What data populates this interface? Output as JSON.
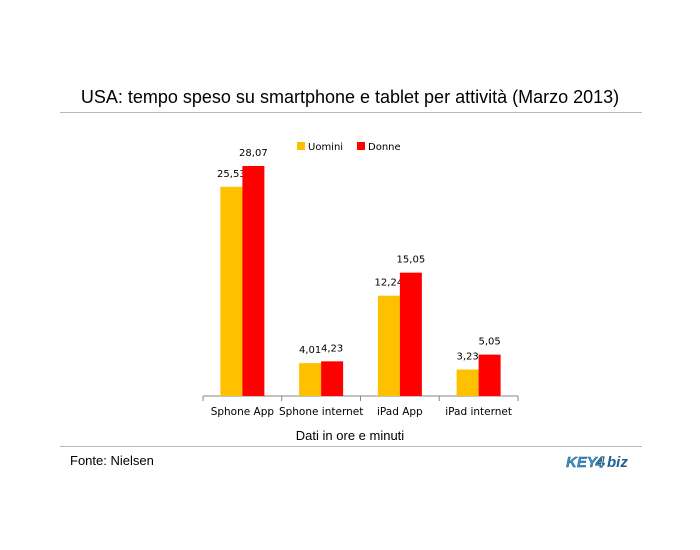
{
  "chart_data": {
    "type": "bar",
    "title": "USA: tempo speso su smartphone e tablet per attività (Marzo 2013)",
    "xlabel": "Dati in ore e minuti",
    "ylabel": "",
    "ylim": [
      0,
      28.07
    ],
    "categories": [
      "Sphone App",
      "Sphone internet",
      "iPad App",
      "iPad internet"
    ],
    "series": [
      {
        "name": "Uomini",
        "color": "#FFC000",
        "values": [
          25.53,
          4.01,
          12.24,
          3.23
        ],
        "labels": [
          "25,53",
          "4,01",
          "12,24",
          "3,23"
        ]
      },
      {
        "name": "Donne",
        "color": "#FF0000",
        "values": [
          28.07,
          4.23,
          15.05,
          5.05
        ],
        "labels": [
          "28,07",
          "4,23",
          "15,05",
          "5,05"
        ]
      }
    ],
    "legend": "top-center",
    "grid": false
  },
  "source": "Fonte: Nielsen",
  "logo": {
    "text": "KEY4biz",
    "icon": "key4biz-logo"
  }
}
